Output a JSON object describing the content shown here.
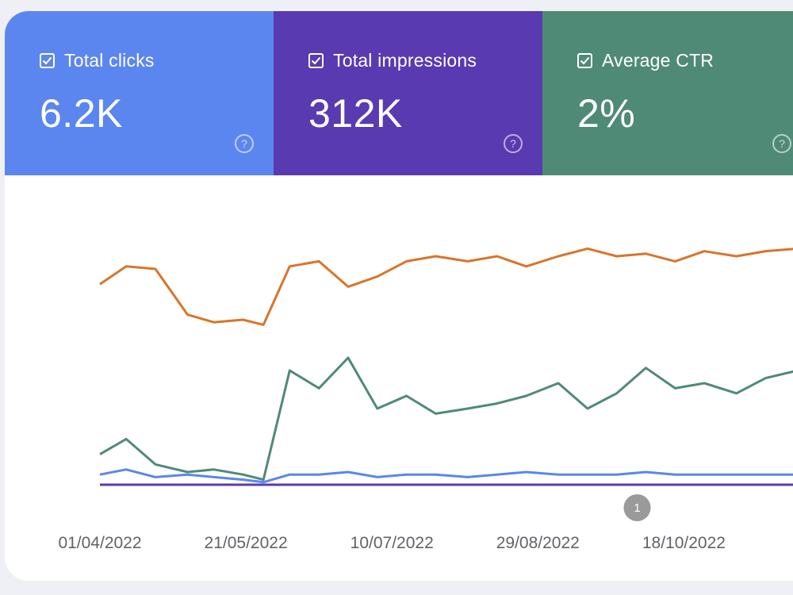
{
  "metrics": {
    "clicks": {
      "label": "Total clicks",
      "value": "6.2K",
      "color": "#5b86ef"
    },
    "impressions": {
      "label": "Total impressions",
      "value": "312K",
      "color": "#5a3ab0"
    },
    "ctr": {
      "label": "Average CTR",
      "value": "2%",
      "color": "#4f8a77"
    }
  },
  "chart_data": {
    "type": "line",
    "x_ticks": [
      "01/04/2022",
      "21/05/2022",
      "10/07/2022",
      "29/08/2022",
      "18/10/2022"
    ],
    "x_range": [
      "01/04/2022",
      "26/11/2022"
    ],
    "grid": false,
    "legend": "none",
    "annotations": [
      {
        "label": "1",
        "date": "02/10/2022"
      }
    ],
    "series": [
      {
        "color": "#d9752a",
        "x": [
          "01/04/2022",
          "10/04/2022",
          "20/04/2022",
          "01/05/2022",
          "10/05/2022",
          "20/05/2022",
          "27/05/2022",
          "05/06/2022",
          "15/06/2022",
          "25/06/2022",
          "05/07/2022",
          "15/07/2022",
          "25/07/2022",
          "05/08/2022",
          "15/08/2022",
          "25/08/2022",
          "05/09/2022",
          "15/09/2022",
          "25/09/2022",
          "05/10/2022",
          "15/10/2022",
          "25/10/2022",
          "05/11/2022",
          "15/11/2022",
          "26/11/2022"
        ],
        "values": [
          0.79,
          0.86,
          0.85,
          0.67,
          0.64,
          0.65,
          0.63,
          0.86,
          0.88,
          0.78,
          0.82,
          0.88,
          0.9,
          0.88,
          0.9,
          0.86,
          0.9,
          0.93,
          0.9,
          0.91,
          0.88,
          0.92,
          0.9,
          0.92,
          0.93
        ]
      },
      {
        "color": "#4f8a77",
        "x": [
          "01/04/2022",
          "10/04/2022",
          "20/04/2022",
          "01/05/2022",
          "10/05/2022",
          "20/05/2022",
          "27/05/2022",
          "05/06/2022",
          "15/06/2022",
          "25/06/2022",
          "05/07/2022",
          "15/07/2022",
          "25/07/2022",
          "05/08/2022",
          "15/08/2022",
          "25/08/2022",
          "05/09/2022",
          "15/09/2022",
          "25/09/2022",
          "05/10/2022",
          "15/10/2022",
          "25/10/2022",
          "05/11/2022",
          "15/11/2022",
          "26/11/2022"
        ],
        "values": [
          0.12,
          0.18,
          0.08,
          0.05,
          0.06,
          0.04,
          0.02,
          0.45,
          0.38,
          0.5,
          0.3,
          0.35,
          0.28,
          0.3,
          0.32,
          0.35,
          0.4,
          0.3,
          0.36,
          0.46,
          0.38,
          0.4,
          0.36,
          0.42,
          0.45
        ]
      },
      {
        "color": "#5b86ef",
        "x": [
          "01/04/2022",
          "10/04/2022",
          "20/04/2022",
          "01/05/2022",
          "10/05/2022",
          "20/05/2022",
          "27/05/2022",
          "05/06/2022",
          "15/06/2022",
          "25/06/2022",
          "05/07/2022",
          "15/07/2022",
          "25/07/2022",
          "05/08/2022",
          "15/08/2022",
          "25/08/2022",
          "05/09/2022",
          "15/09/2022",
          "25/09/2022",
          "05/10/2022",
          "15/10/2022",
          "25/10/2022",
          "05/11/2022",
          "15/11/2022",
          "26/11/2022"
        ],
        "values": [
          0.04,
          0.06,
          0.03,
          0.04,
          0.03,
          0.02,
          0.01,
          0.04,
          0.04,
          0.05,
          0.03,
          0.04,
          0.04,
          0.03,
          0.04,
          0.05,
          0.04,
          0.04,
          0.04,
          0.05,
          0.04,
          0.04,
          0.04,
          0.04,
          0.04
        ]
      },
      {
        "color": "#5a3ab0",
        "x": [
          "01/04/2022",
          "10/04/2022",
          "20/04/2022",
          "01/05/2022",
          "10/05/2022",
          "20/05/2022",
          "27/05/2022",
          "05/06/2022",
          "15/06/2022",
          "25/06/2022",
          "05/07/2022",
          "15/07/2022",
          "25/07/2022",
          "05/08/2022",
          "15/08/2022",
          "25/08/2022",
          "05/09/2022",
          "15/09/2022",
          "25/09/2022",
          "05/10/2022",
          "15/10/2022",
          "25/10/2022",
          "05/11/2022",
          "15/11/2022",
          "26/11/2022"
        ],
        "values": [
          0.0,
          0.0,
          0.0,
          0.0,
          0.0,
          0.0,
          0.0,
          0.0,
          0.0,
          0.0,
          0.0,
          0.0,
          0.0,
          0.0,
          0.0,
          0.0,
          0.0,
          0.0,
          0.0,
          0.0,
          0.0,
          0.0,
          0.0,
          0.0,
          0.0
        ]
      }
    ]
  }
}
